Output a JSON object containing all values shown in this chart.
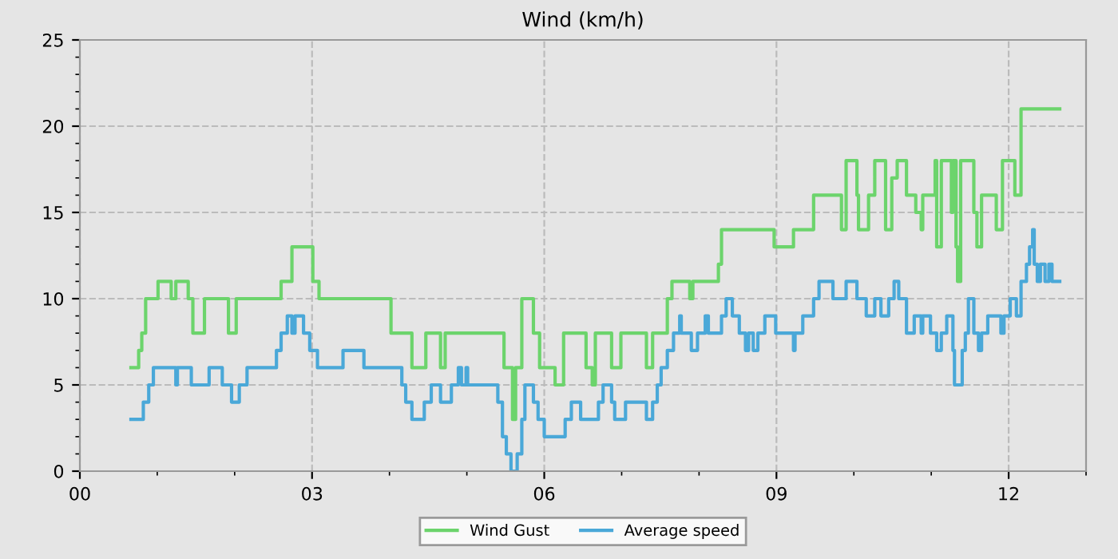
{
  "chart_data": {
    "type": "step",
    "title": "Wind (km/h)",
    "xlim": [
      0,
      13
    ],
    "xticks": [
      {
        "value": 0,
        "label": "00"
      },
      {
        "value": 3,
        "label": "03"
      },
      {
        "value": 6,
        "label": "06"
      },
      {
        "value": 9,
        "label": "09"
      },
      {
        "value": 12,
        "label": "12"
      }
    ],
    "ylim": [
      0,
      25
    ],
    "yticks": [
      0,
      5,
      10,
      15,
      20,
      25
    ],
    "grid": true,
    "legend": "bottom",
    "series": [
      {
        "name": "Wind Gust",
        "color": "#6cd46c",
        "x": [
          0.66,
          0.76,
          0.8,
          0.85,
          1.01,
          1.18,
          1.24,
          1.4,
          1.46,
          1.61,
          1.92,
          2.02,
          2.6,
          2.74,
          3.01,
          3.09,
          4.02,
          4.29,
          4.47,
          4.66,
          4.72,
          5.48,
          5.59,
          5.63,
          5.71,
          5.86,
          5.94,
          6.14,
          6.25,
          6.54,
          6.62,
          6.66,
          6.87,
          6.99,
          7.32,
          7.4,
          7.59,
          7.65,
          7.88,
          7.92,
          8.25,
          8.29,
          8.97,
          9.22,
          9.48,
          9.84,
          9.9,
          10.04,
          10.06,
          10.19,
          10.27,
          10.41,
          10.49,
          10.56,
          10.68,
          10.8,
          10.87,
          10.89,
          11.05,
          11.07,
          11.13,
          11.26,
          11.28,
          11.32,
          11.34,
          11.38,
          11.55,
          11.59,
          11.65,
          11.84,
          11.92,
          12.08,
          12.16,
          12.66
        ],
        "values": [
          6,
          7,
          8,
          10,
          11,
          10,
          11,
          10,
          8,
          10,
          8,
          10,
          11,
          13,
          11,
          10,
          8,
          6,
          8,
          6,
          8,
          6,
          3,
          6,
          10,
          8,
          6,
          5,
          8,
          6,
          5,
          8,
          6,
          8,
          6,
          8,
          10,
          11,
          10,
          11,
          12,
          14,
          13,
          14,
          16,
          14,
          18,
          16,
          14,
          16,
          18,
          14,
          17,
          18,
          16,
          15,
          14,
          16,
          18,
          13,
          18,
          15,
          18,
          13,
          11,
          18,
          15,
          13,
          16,
          14,
          18,
          16,
          21,
          21
        ]
      },
      {
        "name": "Average speed",
        "color": "#4aa8d8",
        "x": [
          0.66,
          0.82,
          0.89,
          0.95,
          1.24,
          1.26,
          1.44,
          1.67,
          1.84,
          1.96,
          2.06,
          2.16,
          2.54,
          2.6,
          2.68,
          2.74,
          2.78,
          2.89,
          2.97,
          3.07,
          3.4,
          3.67,
          4.16,
          4.21,
          4.29,
          4.45,
          4.54,
          4.66,
          4.8,
          4.89,
          4.93,
          4.99,
          5.01,
          5.4,
          5.46,
          5.51,
          5.57,
          5.65,
          5.71,
          5.75,
          5.86,
          5.92,
          6.0,
          6.27,
          6.35,
          6.47,
          6.7,
          6.76,
          6.87,
          6.91,
          7.05,
          7.32,
          7.4,
          7.46,
          7.51,
          7.59,
          7.67,
          7.75,
          7.77,
          7.9,
          7.98,
          8.08,
          8.12,
          8.29,
          8.35,
          8.43,
          8.52,
          8.6,
          8.64,
          8.7,
          8.76,
          8.85,
          8.99,
          9.22,
          9.24,
          9.34,
          9.48,
          9.55,
          9.73,
          9.9,
          10.04,
          10.16,
          10.27,
          10.35,
          10.45,
          10.52,
          10.58,
          10.68,
          10.78,
          10.87,
          10.89,
          10.99,
          11.07,
          11.13,
          11.2,
          11.28,
          11.3,
          11.4,
          11.44,
          11.48,
          11.55,
          11.61,
          11.65,
          11.73,
          11.9,
          11.94,
          12.02,
          12.1,
          12.16,
          12.23,
          12.27,
          12.31,
          12.33,
          12.37,
          12.41,
          12.47,
          12.52,
          12.56,
          12.66
        ],
        "values": [
          3,
          4,
          5,
          6,
          5,
          6,
          5,
          6,
          5,
          4,
          5,
          6,
          7,
          8,
          9,
          8,
          9,
          8,
          7,
          6,
          7,
          6,
          5,
          4,
          3,
          4,
          5,
          4,
          5,
          6,
          5,
          6,
          5,
          4,
          2,
          1,
          0,
          1,
          3,
          5,
          4,
          3,
          2,
          3,
          4,
          3,
          4,
          5,
          4,
          3,
          4,
          3,
          4,
          5,
          6,
          7,
          8,
          9,
          8,
          7,
          8,
          9,
          8,
          9,
          10,
          9,
          8,
          7,
          8,
          7,
          8,
          9,
          8,
          7,
          8,
          9,
          10,
          11,
          10,
          11,
          10,
          9,
          10,
          9,
          10,
          11,
          10,
          8,
          9,
          8,
          9,
          8,
          7,
          8,
          9,
          7,
          5,
          7,
          8,
          10,
          8,
          7,
          8,
          9,
          8,
          9,
          10,
          9,
          11,
          12,
          13,
          14,
          12,
          11,
          12,
          11,
          12,
          11,
          11
        ]
      }
    ]
  }
}
